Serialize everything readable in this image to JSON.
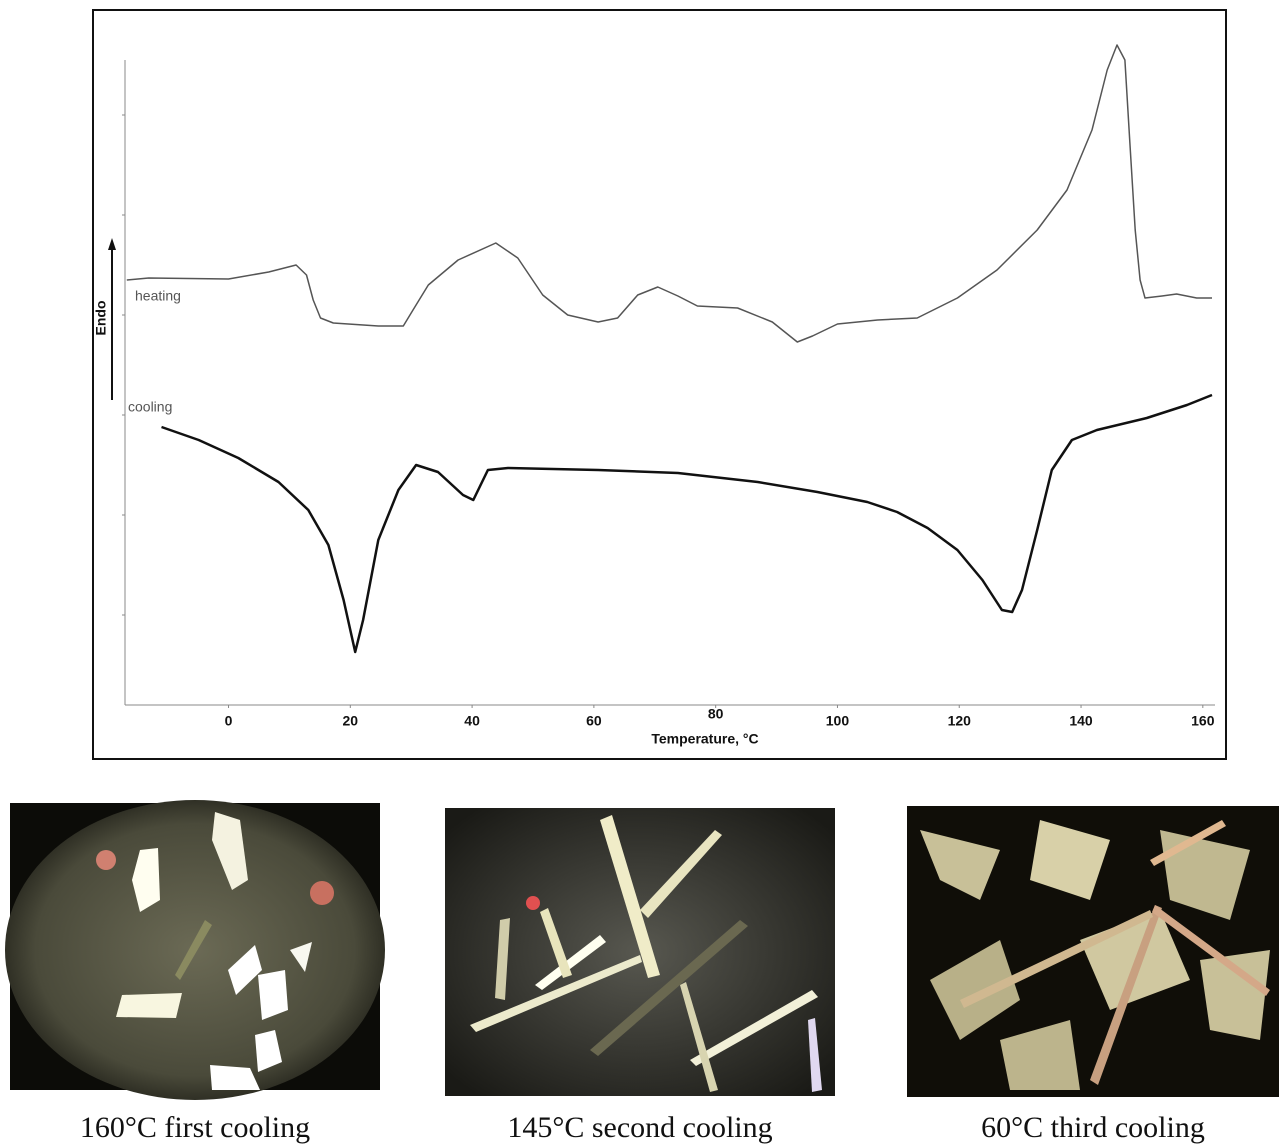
{
  "chart_data": {
    "type": "line",
    "xlabel": "Temperature, °C",
    "ylabel": "Endo",
    "xlim": [
      -17,
      162
    ],
    "xticks": [
      0,
      20,
      40,
      60,
      80,
      100,
      120,
      140,
      160
    ],
    "ylim": [
      0,
      6.45
    ],
    "yticks": [
      0.9,
      1.9,
      2.9,
      3.9,
      4.9,
      5.9
    ],
    "series": [
      {
        "name": "heating",
        "color": "#555555",
        "x": [
          -16.7,
          -13.1,
          0,
          6.6,
          11.1,
          12.8,
          13.9,
          15.1,
          17.2,
          24.6,
          28.7,
          30.3,
          32.8,
          37.7,
          43.9,
          47.5,
          51.6,
          55.7,
          60.7,
          63.9,
          67.2,
          70.5,
          73.8,
          77.0,
          83.6,
          89.3,
          93.4,
          95.9,
          100.0,
          106.6,
          113.1,
          119.7,
          126.2,
          132.8,
          137.7,
          141.8,
          144.3,
          145.9,
          147.2,
          148.0,
          148.9,
          149.7,
          150.5,
          153.3,
          155.7,
          159.0,
          161.5
        ],
        "values": [
          4.25,
          4.27,
          4.26,
          4.33,
          4.4,
          4.3,
          4.05,
          3.87,
          3.82,
          3.79,
          3.79,
          3.95,
          4.2,
          4.45,
          4.62,
          4.47,
          4.1,
          3.9,
          3.83,
          3.87,
          4.1,
          4.18,
          4.09,
          3.99,
          3.97,
          3.83,
          3.63,
          3.69,
          3.81,
          3.85,
          3.87,
          4.07,
          4.35,
          4.75,
          5.15,
          5.75,
          6.35,
          6.6,
          6.45,
          5.65,
          4.75,
          4.25,
          4.07,
          4.09,
          4.11,
          4.07,
          4.07
        ]
      },
      {
        "name": "cooling",
        "color": "#111111",
        "x": [
          -11.0,
          -4.9,
          1.6,
          8.2,
          13.1,
          16.4,
          18.9,
          20.8,
          22.1,
          24.6,
          27.9,
          30.8,
          34.4,
          38.5,
          40.2,
          42.6,
          45.9,
          60.7,
          73.8,
          86.9,
          96.7,
          104.9,
          109.8,
          114.8,
          119.7,
          123.8,
          127.0,
          128.7,
          130.3,
          132.8,
          135.2,
          138.5,
          142.6,
          150.8,
          157.4,
          161.5
        ],
        "values": [
          2.78,
          2.65,
          2.47,
          2.23,
          1.95,
          1.6,
          1.05,
          0.53,
          0.85,
          1.65,
          2.15,
          2.4,
          2.33,
          2.1,
          2.05,
          2.35,
          2.37,
          2.35,
          2.32,
          2.23,
          2.13,
          2.03,
          1.93,
          1.77,
          1.55,
          1.25,
          0.95,
          0.93,
          1.15,
          1.75,
          2.35,
          2.65,
          2.75,
          2.87,
          3.0,
          3.1
        ]
      }
    ]
  },
  "images": [
    {
      "caption": "160°C first cooling"
    },
    {
      "caption": "145°C second cooling"
    },
    {
      "caption": "60°C third cooling"
    }
  ]
}
